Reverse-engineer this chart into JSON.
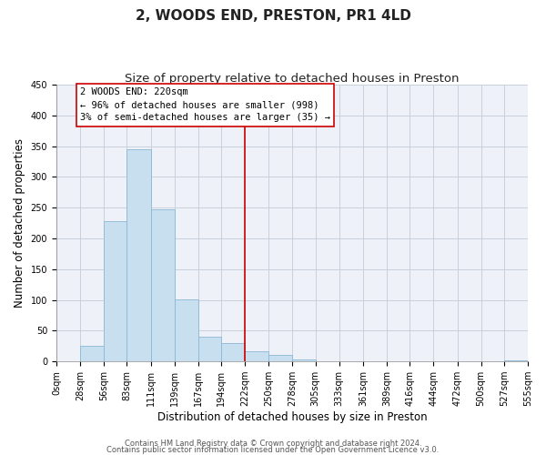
{
  "title": "2, WOODS END, PRESTON, PR1 4LD",
  "subtitle": "Size of property relative to detached houses in Preston",
  "xlabel": "Distribution of detached houses by size in Preston",
  "ylabel": "Number of detached properties",
  "bar_left_edges": [
    0,
    28,
    56,
    83,
    111,
    139,
    167,
    194,
    222,
    250,
    278,
    305,
    333,
    361,
    389,
    416,
    444,
    472,
    500,
    527
  ],
  "bar_heights": [
    0,
    25,
    228,
    345,
    247,
    101,
    41,
    30,
    16,
    11,
    4,
    0,
    0,
    0,
    0,
    0,
    0,
    0,
    0,
    2
  ],
  "bar_widths": [
    28,
    28,
    27,
    28,
    28,
    28,
    27,
    28,
    28,
    28,
    27,
    28,
    28,
    28,
    27,
    28,
    28,
    28,
    27,
    28
  ],
  "bar_color": "#c8dff0",
  "bar_edgecolor": "#8ab8d4",
  "vline_x": 222,
  "vline_color": "#cc0000",
  "xtick_labels": [
    "0sqm",
    "28sqm",
    "56sqm",
    "83sqm",
    "111sqm",
    "139sqm",
    "167sqm",
    "194sqm",
    "222sqm",
    "250sqm",
    "278sqm",
    "305sqm",
    "333sqm",
    "361sqm",
    "389sqm",
    "416sqm",
    "444sqm",
    "472sqm",
    "500sqm",
    "527sqm",
    "555sqm"
  ],
  "xtick_positions": [
    0,
    28,
    56,
    83,
    111,
    139,
    167,
    194,
    222,
    250,
    278,
    305,
    333,
    361,
    389,
    416,
    444,
    472,
    500,
    527,
    555
  ],
  "ylim": [
    0,
    450
  ],
  "xlim": [
    0,
    555
  ],
  "ytick_values": [
    0,
    50,
    100,
    150,
    200,
    250,
    300,
    350,
    400,
    450
  ],
  "annotation_title": "2 WOODS END: 220sqm",
  "annotation_line1": "← 96% of detached houses are smaller (998)",
  "annotation_line2": "3% of semi-detached houses are larger (35) →",
  "annotation_box_facecolor": "#ffffff",
  "annotation_box_edgecolor": "#cc0000",
  "footer_line1": "Contains HM Land Registry data © Crown copyright and database right 2024.",
  "footer_line2": "Contains public sector information licensed under the Open Government Licence v3.0.",
  "bg_color": "#ffffff",
  "axes_bg_color": "#eef2f8",
  "grid_color": "#c8d0dc",
  "title_fontsize": 11,
  "subtitle_fontsize": 9.5,
  "axis_label_fontsize": 8.5,
  "tick_fontsize": 7,
  "annotation_fontsize": 7.5,
  "footer_fontsize": 6
}
